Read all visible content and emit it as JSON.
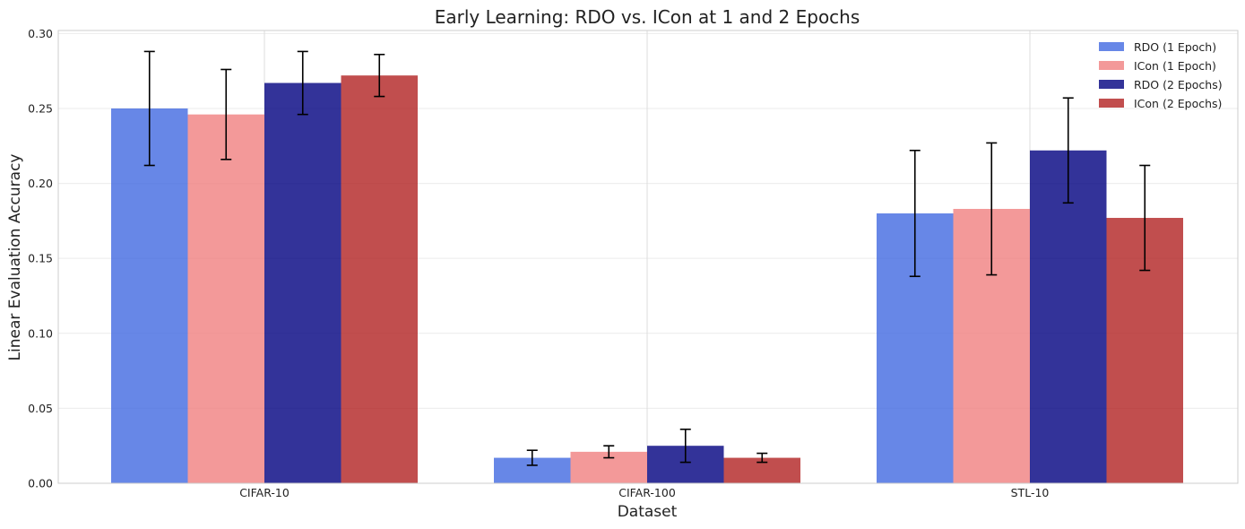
{
  "chart_data": {
    "type": "bar",
    "title": "Early Learning: RDO vs. ICon at 1 and 2 Epochs",
    "xlabel": "Dataset",
    "ylabel": "Linear Evaluation Accuracy",
    "categories": [
      "CIFAR-10",
      "CIFAR-100",
      "STL-10"
    ],
    "ylim": [
      0,
      0.302
    ],
    "yticks": [
      "0.00",
      "0.05",
      "0.10",
      "0.15",
      "0.20",
      "0.25",
      "0.30"
    ],
    "grid": true,
    "legend_position": "top-right",
    "series": [
      {
        "name": "RDO (1 Epoch)",
        "color": "#4169e1",
        "values": [
          0.25,
          0.017,
          0.18
        ],
        "errors": [
          0.038,
          0.005,
          0.042
        ]
      },
      {
        "name": "ICon (1 Epoch)",
        "color": "#f08080",
        "values": [
          0.246,
          0.021,
          0.183
        ],
        "errors": [
          0.03,
          0.004,
          0.044
        ]
      },
      {
        "name": "RDO (2 Epochs)",
        "color": "#000080",
        "values": [
          0.267,
          0.025,
          0.222
        ],
        "errors": [
          0.021,
          0.011,
          0.035
        ]
      },
      {
        "name": "ICon (2 Epochs)",
        "color": "#b22222",
        "values": [
          0.272,
          0.017,
          0.177
        ],
        "errors": [
          0.014,
          0.003,
          0.035
        ]
      }
    ]
  }
}
